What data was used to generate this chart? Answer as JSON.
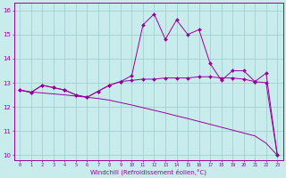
{
  "xlabel": "Windchill (Refroidissement éolien,°C)",
  "x_values": [
    0,
    1,
    2,
    3,
    4,
    5,
    6,
    7,
    8,
    9,
    10,
    11,
    12,
    13,
    14,
    15,
    16,
    17,
    18,
    19,
    20,
    21,
    22,
    23
  ],
  "line1": [
    12.7,
    12.6,
    12.9,
    12.8,
    12.7,
    12.5,
    12.4,
    12.65,
    12.9,
    13.05,
    13.3,
    15.4,
    15.85,
    14.8,
    15.6,
    15.0,
    15.2,
    13.8,
    13.1,
    13.5,
    13.5,
    13.05,
    13.4,
    10.0
  ],
  "line2": [
    12.7,
    12.6,
    12.9,
    12.8,
    12.7,
    12.5,
    12.4,
    12.65,
    12.9,
    13.05,
    13.1,
    13.15,
    13.15,
    13.2,
    13.2,
    13.2,
    13.25,
    13.25,
    13.2,
    13.2,
    13.15,
    13.05,
    13.0,
    10.0
  ],
  "line3": [
    12.7,
    12.62,
    12.58,
    12.54,
    12.5,
    12.45,
    12.4,
    12.35,
    12.28,
    12.18,
    12.08,
    11.97,
    11.86,
    11.75,
    11.63,
    11.52,
    11.4,
    11.28,
    11.16,
    11.04,
    10.92,
    10.8,
    10.5,
    10.0
  ],
  "line_color": "#990099",
  "bg_color": "#c8ecec",
  "grid_color": "#99cccc",
  "ylim": [
    9.8,
    16.3
  ],
  "xlim": [
    -0.5,
    23.5
  ],
  "yticks": [
    10,
    11,
    12,
    13,
    14,
    15,
    16
  ],
  "xticks": [
    0,
    1,
    2,
    3,
    4,
    5,
    6,
    7,
    8,
    9,
    10,
    11,
    12,
    13,
    14,
    15,
    16,
    17,
    18,
    19,
    20,
    21,
    22,
    23
  ]
}
